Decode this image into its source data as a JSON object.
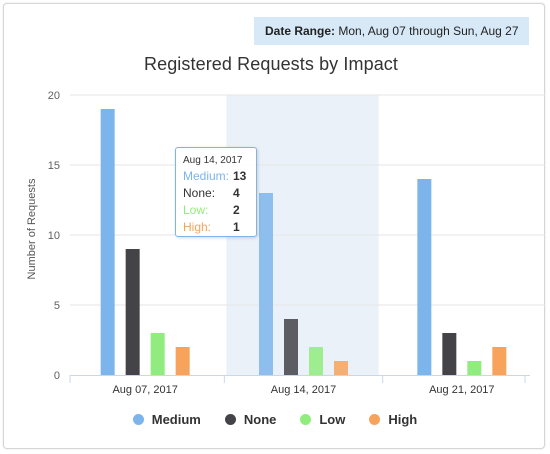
{
  "date_range": {
    "label": "Date Range:",
    "value": "Mon, Aug 07 through Sun, Aug 27"
  },
  "chart_data": {
    "type": "bar",
    "title": "Registered Requests by Impact",
    "ylabel": "Number of Requests",
    "xlabel": "",
    "ylim": [
      0,
      20
    ],
    "yticks": [
      0,
      5,
      10,
      15,
      20
    ],
    "categories": [
      "Aug 07, 2017",
      "Aug 14, 2017",
      "Aug 21, 2017"
    ],
    "series": [
      {
        "name": "Medium",
        "color": "#7cb5ec",
        "values": [
          19,
          13,
          14
        ]
      },
      {
        "name": "None",
        "color": "#434348",
        "values": [
          9,
          4,
          3
        ]
      },
      {
        "name": "Low",
        "color": "#90ed7d",
        "values": [
          3,
          2,
          1
        ]
      },
      {
        "name": "High",
        "color": "#f7a35c",
        "values": [
          2,
          1,
          2
        ]
      }
    ],
    "highlight_category": "Aug 14, 2017",
    "legend_position": "bottom-center",
    "grid": true
  },
  "tooltip": {
    "header": "Aug 14, 2017",
    "rows": [
      {
        "name": "Medium:",
        "value": "13",
        "color": "#7cb5ec"
      },
      {
        "name": "None:",
        "value": "4",
        "color": "#333333"
      },
      {
        "name": "Low:",
        "value": "2",
        "color": "#90ed7d"
      },
      {
        "name": "High:",
        "value": "1",
        "color": "#f7a35c"
      }
    ]
  }
}
